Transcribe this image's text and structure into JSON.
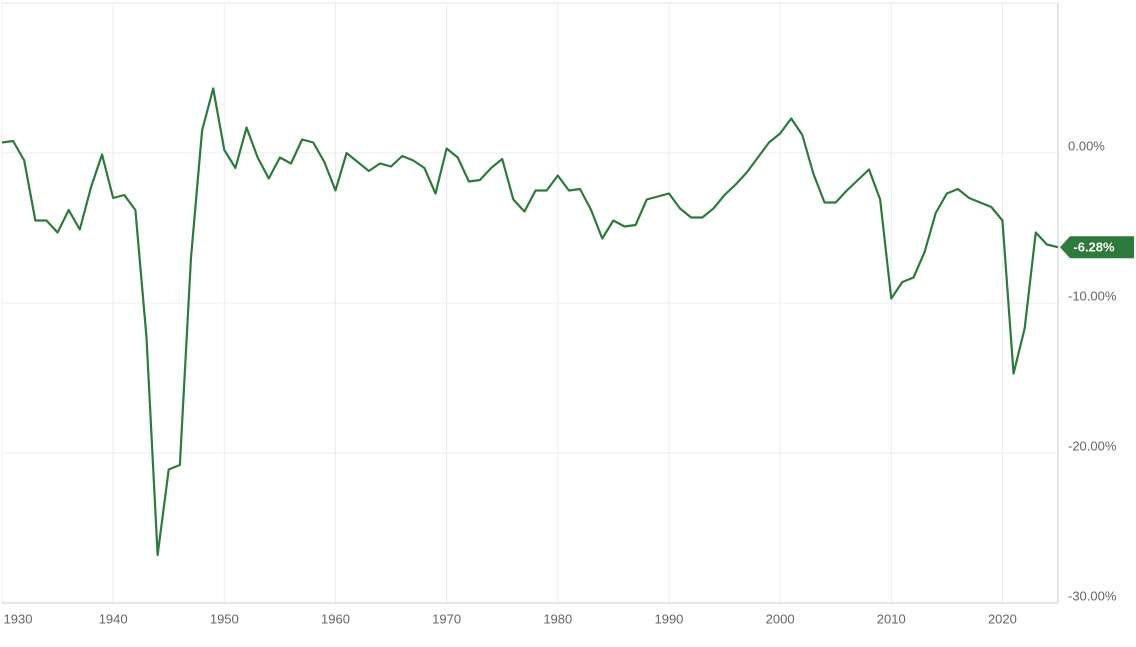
{
  "chart_data": {
    "type": "line",
    "x": [
      1930,
      1931,
      1932,
      1933,
      1934,
      1935,
      1936,
      1937,
      1938,
      1939,
      1940,
      1941,
      1942,
      1943,
      1944,
      1945,
      1946,
      1947,
      1948,
      1949,
      1950,
      1951,
      1952,
      1953,
      1954,
      1955,
      1956,
      1957,
      1958,
      1959,
      1960,
      1961,
      1962,
      1963,
      1964,
      1965,
      1966,
      1967,
      1968,
      1969,
      1970,
      1971,
      1972,
      1973,
      1974,
      1975,
      1976,
      1977,
      1978,
      1979,
      1980,
      1981,
      1982,
      1983,
      1984,
      1985,
      1986,
      1987,
      1988,
      1989,
      1990,
      1991,
      1992,
      1993,
      1994,
      1995,
      1996,
      1997,
      1998,
      1999,
      2000,
      2001,
      2002,
      2003,
      2004,
      2005,
      2006,
      2007,
      2008,
      2009,
      2010,
      2011,
      2012,
      2013,
      2014,
      2015,
      2016,
      2017,
      2018,
      2019,
      2020,
      2021,
      2022,
      2023,
      2024,
      2025
    ],
    "series": [
      {
        "color": "#2e7a3c",
        "values": [
          0.7,
          0.8,
          -0.5,
          -4.5,
          -4.5,
          -5.3,
          -3.8,
          -5.1,
          -2.3,
          -0.1,
          -3.0,
          -2.8,
          -3.8,
          -12.3,
          -26.8,
          -21.1,
          -20.8,
          -7.0,
          1.5,
          4.3,
          0.2,
          -1.0,
          1.7,
          -0.3,
          -1.7,
          -0.3,
          -0.7,
          0.9,
          0.7,
          -0.6,
          -2.5,
          0,
          -0.6,
          -1.2,
          -0.7,
          -0.9,
          -0.2,
          -0.5,
          -1.0,
          -2.7,
          0.3,
          -0.3,
          -1.9,
          -1.8,
          -1.0,
          -0.4,
          -3.1,
          -3.9,
          -2.5,
          -2.5,
          -1.5,
          -2.5,
          -2.4,
          -3.8,
          -5.7,
          -4.5,
          -4.9,
          -4.8,
          -3.1,
          -2.9,
          -2.7,
          -3.7,
          -4.3,
          -4.3,
          -3.7,
          -2.8,
          -2.1,
          -1.3,
          -0.3,
          0.7,
          1.3,
          2.3,
          1.2,
          -1.4,
          -3.3,
          -3.3,
          -2.5,
          -1.8,
          -1.1,
          -3.1,
          -9.7,
          -8.6,
          -8.3,
          -6.6,
          -4.0,
          -2.7,
          -2.4,
          -3.0,
          -3.3,
          -3.6,
          -4.5,
          -14.7,
          -11.7,
          -5.3,
          -6.1,
          -6.28
        ],
        "value_labels": [
          null,
          null,
          null,
          null,
          null,
          null,
          null,
          null,
          null,
          null,
          null,
          null,
          null,
          null,
          null,
          null,
          null,
          null,
          null,
          null,
          null,
          null,
          null,
          null,
          null,
          null,
          null,
          null,
          null,
          null,
          null,
          null,
          null,
          null,
          null,
          null,
          null,
          null,
          null,
          null,
          null,
          null,
          null,
          null,
          null,
          null,
          null,
          null,
          null,
          null,
          null,
          null,
          null,
          null,
          null,
          null,
          null,
          null,
          null,
          null,
          null,
          null,
          null,
          null,
          null,
          null,
          null,
          null,
          null,
          null,
          null,
          null,
          null,
          null,
          null,
          null,
          null,
          null,
          null,
          null,
          null,
          null,
          null,
          null,
          null,
          null,
          null,
          null,
          null,
          null,
          null,
          null,
          null,
          null,
          null,
          "-6.28%"
        ]
      }
    ],
    "xlim": [
      1930,
      2025
    ],
    "xticks": [
      1930,
      1940,
      1950,
      1960,
      1970,
      1980,
      1990,
      2000,
      2010,
      2020
    ],
    "ylim": [
      -30,
      10
    ],
    "yticks": [
      {
        "value": 0,
        "label": "0.00%"
      },
      {
        "value": -10,
        "label": "-10.00%"
      },
      {
        "value": -20,
        "label": "-20.00%"
      },
      {
        "value": -30,
        "label": "-30.00%"
      }
    ],
    "grid": true
  }
}
